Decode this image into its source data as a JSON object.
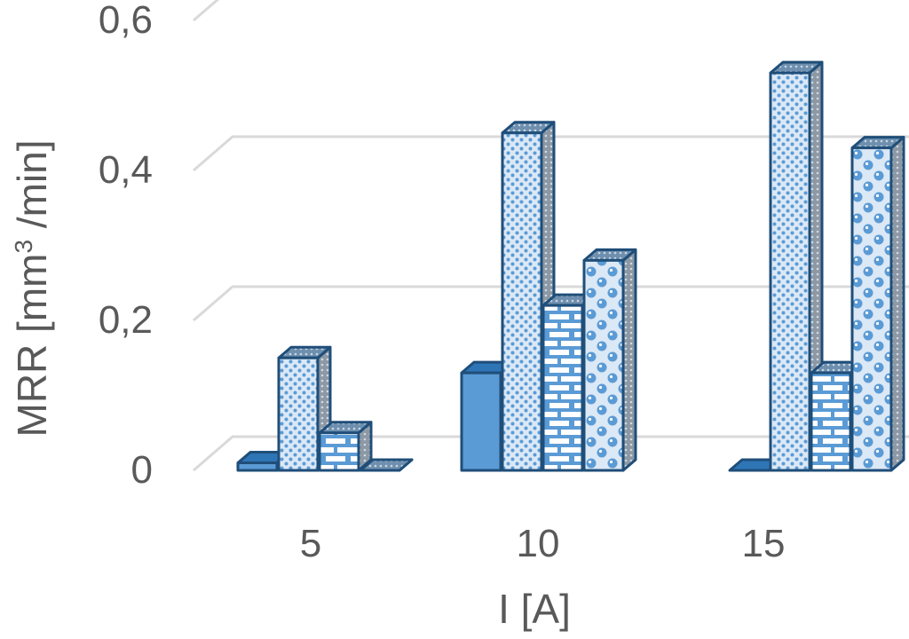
{
  "chart_data": {
    "type": "bar",
    "style": "3d-clustered-column",
    "categories": [
      "5",
      "10",
      "15"
    ],
    "series": [
      {
        "values": [
          0.01,
          0.13,
          0.0
        ],
        "pattern": "solid"
      },
      {
        "values": [
          0.15,
          0.45,
          0.53
        ],
        "pattern": "dotted"
      },
      {
        "values": [
          0.05,
          0.22,
          0.13
        ],
        "pattern": "brick"
      },
      {
        "values": [
          0.0,
          0.28,
          0.43
        ],
        "pattern": "circles"
      }
    ],
    "xlabel": "I [A]",
    "ylabel_main": "MRR [mm",
    "ylabel_sup": "3",
    "ylabel_end": " /min]",
    "ylim": [
      0,
      0.6
    ],
    "yticks": [
      "0",
      "0,2",
      "0,4",
      "0,6"
    ],
    "ytick_values": [
      0,
      0.2,
      0.4,
      0.6
    ],
    "grid": true,
    "colors": {
      "fill": "#5b9bd5",
      "light": "#dbe8f6",
      "outline": "#1f4e79",
      "side": "#7f8c99",
      "grid": "#d9d9d9",
      "text": "#595959"
    }
  }
}
